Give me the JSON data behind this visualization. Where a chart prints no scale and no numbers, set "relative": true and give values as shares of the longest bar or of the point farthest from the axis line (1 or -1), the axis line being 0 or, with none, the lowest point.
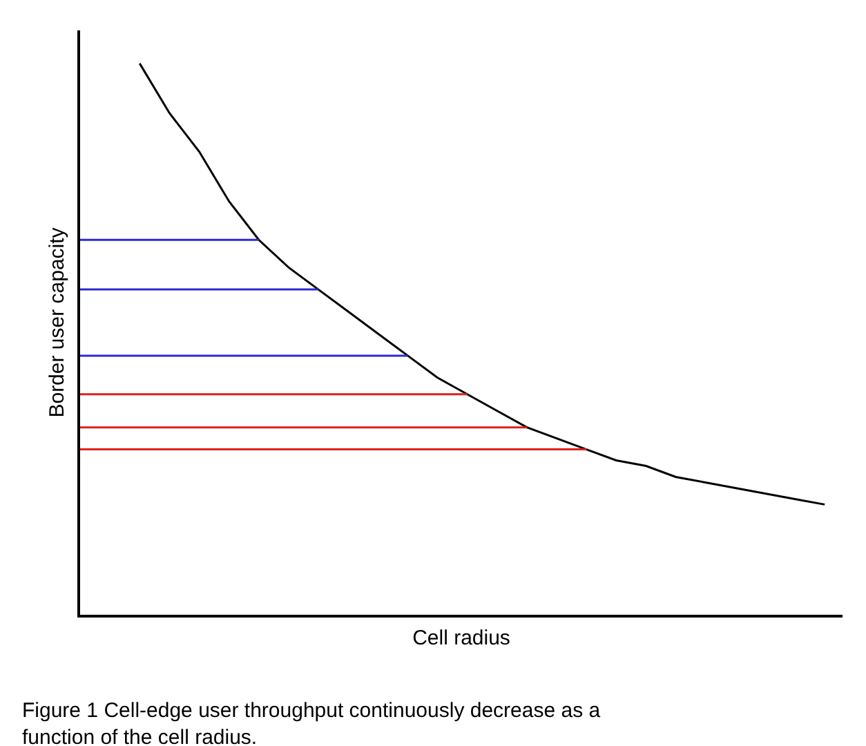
{
  "chart_data": {
    "type": "line",
    "relative": true,
    "xlabel": "Cell radius",
    "ylabel": "Border user capacity",
    "grid": false,
    "marker": "none",
    "line_style": "solid",
    "annotations": [
      "Figure 1 Cell-edge user throughput continuously decrease as a function of the cell radius."
    ],
    "categories": [
      null,
      null,
      null,
      null,
      null,
      null,
      null,
      null,
      null,
      null,
      null,
      null,
      null,
      null,
      null,
      null,
      null,
      null,
      null,
      null,
      null,
      null,
      null,
      null,
      null,
      null
    ],
    "series": [
      {
        "color": "#000000",
        "values": [
          null,
          null,
          1,
          0.91,
          0.84,
          0.75,
          0.68,
          0.63,
          0.59,
          0.55,
          0.51,
          0.47,
          0.43,
          0.4,
          0.37,
          0.34,
          0.32,
          0.3,
          0.28,
          0.27,
          0.25,
          0.24,
          0.23,
          0.22,
          0.21,
          0.2
        ]
      },
      {
        "color": "#2b2bd0",
        "values": [
          0.68,
          0.68,
          0.68,
          0.68,
          0.68,
          0.68,
          0.68,
          null,
          null,
          null,
          null,
          null,
          null,
          null,
          null,
          null,
          null,
          null,
          null,
          null,
          null,
          null,
          null,
          null,
          null,
          null
        ]
      },
      {
        "color": "#2b2bd0",
        "values": [
          0.59,
          0.59,
          0.59,
          0.59,
          0.59,
          0.59,
          0.59,
          0.59,
          0.59,
          null,
          null,
          null,
          null,
          null,
          null,
          null,
          null,
          null,
          null,
          null,
          null,
          null,
          null,
          null,
          null,
          null
        ]
      },
      {
        "color": "#2b2bd0",
        "values": [
          0.47,
          0.47,
          0.47,
          0.47,
          0.47,
          0.47,
          0.47,
          0.47,
          0.47,
          0.47,
          0.47,
          0.47,
          null,
          null,
          null,
          null,
          null,
          null,
          null,
          null,
          null,
          null,
          null,
          null,
          null,
          null
        ]
      },
      {
        "color": "#e02020",
        "values": [
          0.4,
          0.4,
          0.4,
          0.4,
          0.4,
          0.4,
          0.4,
          0.4,
          0.4,
          0.4,
          0.4,
          0.4,
          0.4,
          0.4,
          null,
          null,
          null,
          null,
          null,
          null,
          null,
          null,
          null,
          null,
          null,
          null
        ]
      },
      {
        "color": "#e02020",
        "values": [
          0.34,
          0.34,
          0.34,
          0.34,
          0.34,
          0.34,
          0.34,
          0.34,
          0.34,
          0.34,
          0.34,
          0.34,
          0.34,
          0.34,
          0.34,
          0.34,
          null,
          null,
          null,
          null,
          null,
          null,
          null,
          null,
          null,
          null
        ]
      },
      {
        "color": "#e02020",
        "values": [
          0.3,
          0.3,
          0.3,
          0.3,
          0.3,
          0.3,
          0.3,
          0.3,
          0.3,
          0.3,
          0.3,
          0.3,
          0.3,
          0.3,
          0.3,
          0.3,
          0.3,
          0.3,
          null,
          null,
          null,
          null,
          null,
          null,
          null,
          null
        ]
      }
    ]
  }
}
